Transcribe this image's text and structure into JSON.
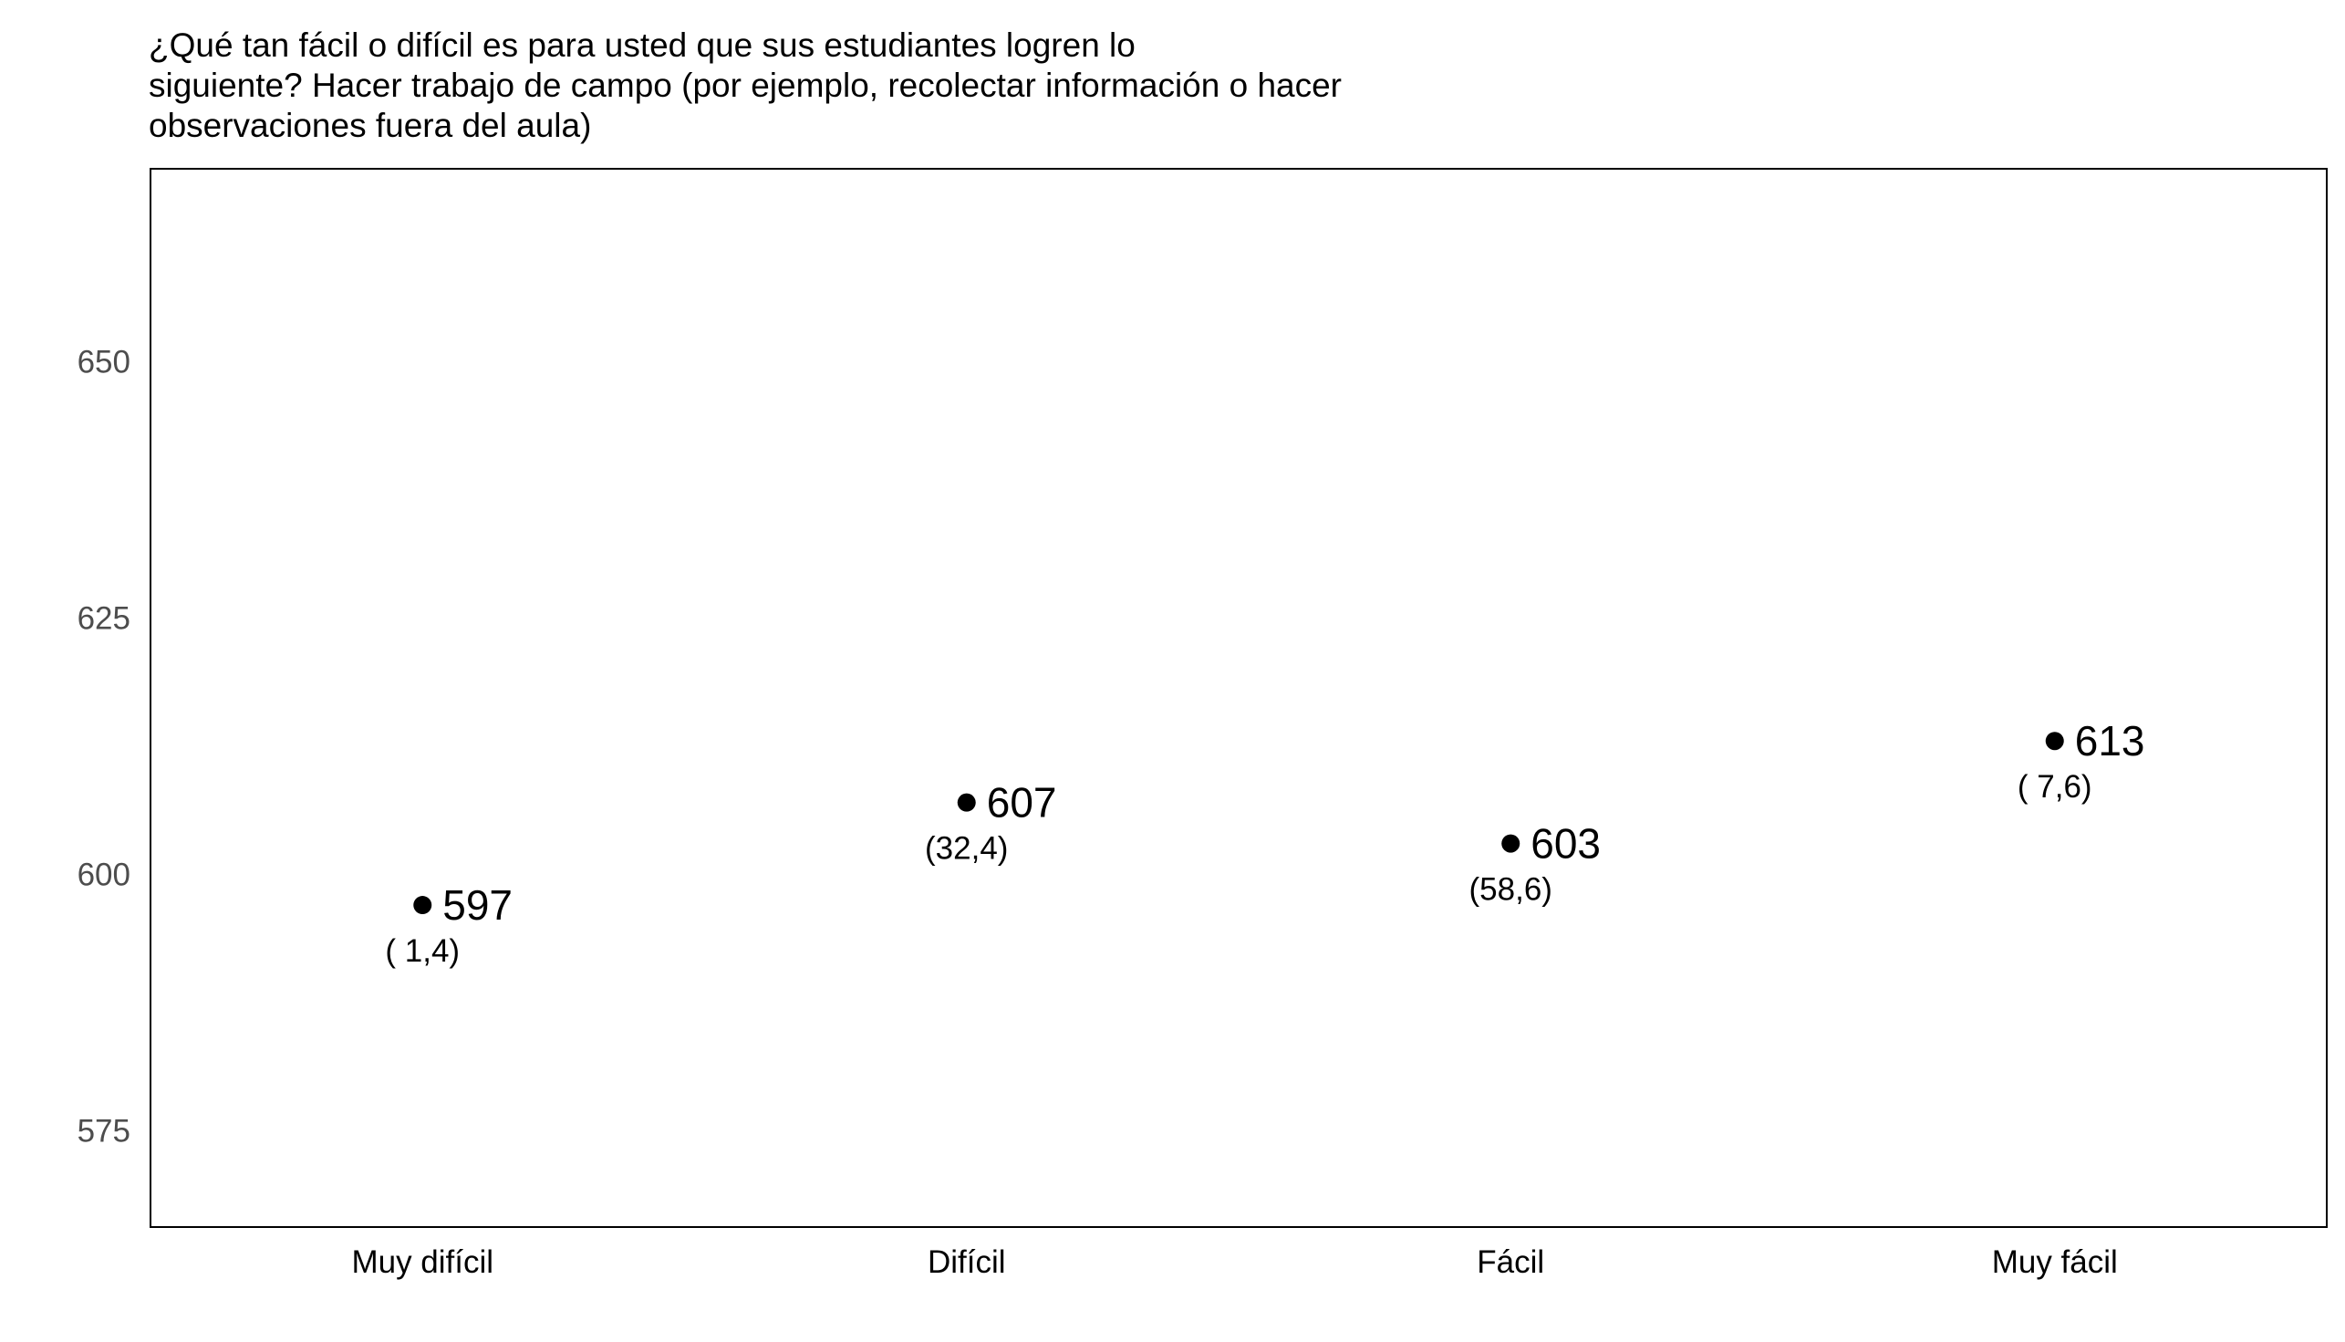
{
  "chart_data": {
    "type": "scatter",
    "title_lines": [
      "¿Qué tan fácil o difícil es para usted que sus estudiantes logren lo",
      "siguiente? Hacer trabajo de campo (por ejemplo, recolectar información o hacer",
      "observaciones fuera del aula)"
    ],
    "categories": [
      "Muy difícil",
      "Difícil",
      "Fácil",
      "Muy fácil"
    ],
    "values": [
      597,
      607,
      603,
      613
    ],
    "value_labels": [
      "597",
      "607",
      "603",
      "613"
    ],
    "secondary_labels": [
      "( 1,4)",
      "(32,4)",
      "(58,6)",
      "( 7,6)"
    ],
    "y_ticks": [
      575,
      600,
      625,
      650
    ],
    "y_tick_labels": [
      "575",
      "600",
      "625",
      "650"
    ],
    "ylim": [
      565.6,
      668.8
    ],
    "grid": false,
    "point_color": "#000000",
    "frame_color": "#000000"
  }
}
